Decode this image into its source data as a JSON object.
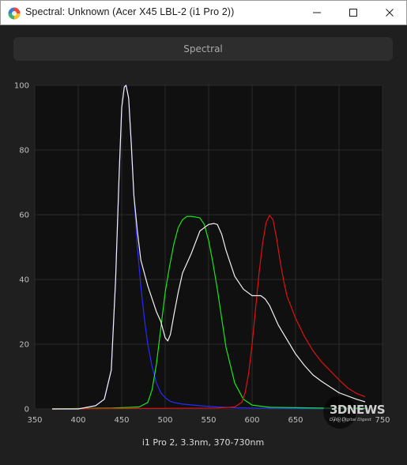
{
  "window": {
    "title": "Spectral: Unknown (Acer X45 LBL-2 (i1 Pro 2))"
  },
  "toolbar": {
    "spectral_label": "Spectral"
  },
  "watermark": {
    "brand": "3DNEWS",
    "tagline": "Daily Digital Digest"
  },
  "chart_data": {
    "type": "line",
    "caption": "i1 Pro 2, 3.3nm, 370-730nm",
    "xlim": [
      350,
      750
    ],
    "ylim": [
      0,
      100
    ],
    "x_ticks": [
      350,
      400,
      450,
      500,
      550,
      600,
      650,
      700,
      750
    ],
    "y_ticks": [
      0,
      20,
      40,
      60,
      80,
      100
    ],
    "grid": true,
    "background": "#101010",
    "series": [
      {
        "color": "#2a2aff",
        "x": [
          370,
          400,
          420,
          430,
          438,
          443,
          447,
          450,
          453,
          455,
          458,
          461,
          464,
          468,
          472,
          476,
          480,
          485,
          490,
          495,
          500,
          505,
          510,
          520,
          540,
          560,
          580,
          600,
          620,
          650,
          700,
          730
        ],
        "y": [
          0,
          0,
          1,
          3,
          12,
          40,
          72,
          93,
          99.5,
          100,
          96,
          82,
          66,
          50,
          38,
          28,
          20,
          13,
          8,
          5,
          3.5,
          2.5,
          2,
          1.5,
          1,
          0.6,
          0.4,
          0.3,
          0.2,
          0.1,
          0.1,
          0.1
        ]
      },
      {
        "color": "#17e817",
        "x": [
          370,
          440,
          470,
          480,
          485,
          490,
          495,
          500,
          505,
          510,
          515,
          520,
          525,
          530,
          535,
          540,
          545,
          550,
          555,
          560,
          565,
          570,
          580,
          590,
          600,
          620,
          700,
          730
        ],
        "y": [
          0,
          0.3,
          0.6,
          2,
          6,
          14,
          25,
          36,
          44,
          51,
          56,
          58.5,
          59.5,
          59.5,
          59.3,
          59,
          57,
          52,
          45,
          37,
          28,
          19,
          8,
          3,
          1.2,
          0.5,
          0.2,
          0.2
        ]
      },
      {
        "color": "#e01010",
        "x": [
          370,
          560,
          580,
          588,
          592,
          596,
          600,
          604,
          608,
          612,
          616,
          620,
          624,
          628,
          632,
          636,
          640,
          650,
          660,
          670,
          680,
          700,
          710,
          720,
          730
        ],
        "y": [
          0,
          0.3,
          0.6,
          2,
          5,
          11,
          20,
          31,
          42,
          51,
          57.5,
          59.8,
          58.5,
          53,
          46,
          40,
          35,
          28,
          22.5,
          18,
          14.5,
          9,
          6.5,
          4.8,
          3.8
        ]
      },
      {
        "color": "#f2f2f2",
        "x": [
          370,
          400,
          420,
          430,
          438,
          443,
          447,
          450,
          453,
          455,
          458,
          461,
          464,
          468,
          472,
          476,
          480,
          485,
          490,
          495,
          500,
          503,
          506,
          510,
          515,
          520,
          525,
          530,
          540,
          550,
          556,
          560,
          565,
          570,
          580,
          590,
          600,
          605,
          610,
          615,
          620,
          630,
          640,
          650,
          660,
          670,
          680,
          700,
          720,
          730
        ],
        "y": [
          0,
          0,
          1,
          3,
          12,
          40,
          72,
          93,
          99.5,
          100,
          96,
          82,
          66,
          55,
          46,
          42,
          38,
          34,
          30,
          27,
          22,
          21,
          23,
          29,
          36,
          42,
          45,
          48,
          55,
          57,
          57.3,
          57,
          54,
          49,
          41,
          37,
          35,
          35,
          35,
          34,
          32,
          26,
          21.5,
          17,
          13.5,
          10.5,
          8.5,
          5,
          3,
          2.2
        ]
      }
    ]
  }
}
